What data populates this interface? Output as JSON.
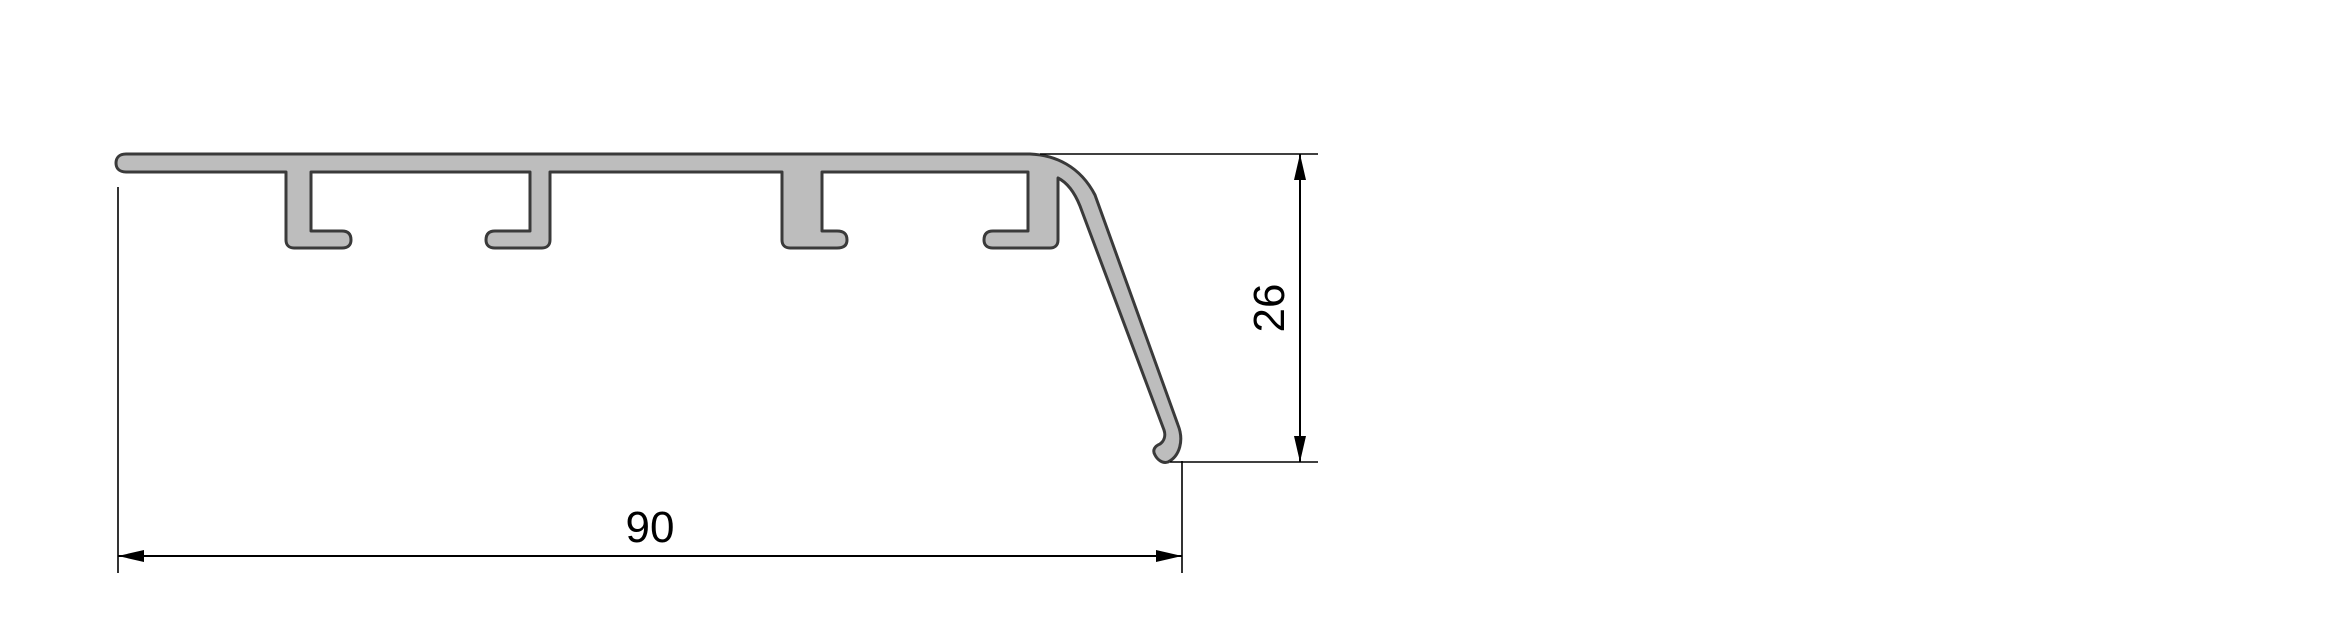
{
  "dimensions": {
    "width_label": "90",
    "height_label": "26"
  },
  "colors": {
    "profile_fill": "#bdbdbd",
    "profile_stroke": "#3a3a3a",
    "dimension_line": "#000000",
    "background": "#ffffff"
  }
}
